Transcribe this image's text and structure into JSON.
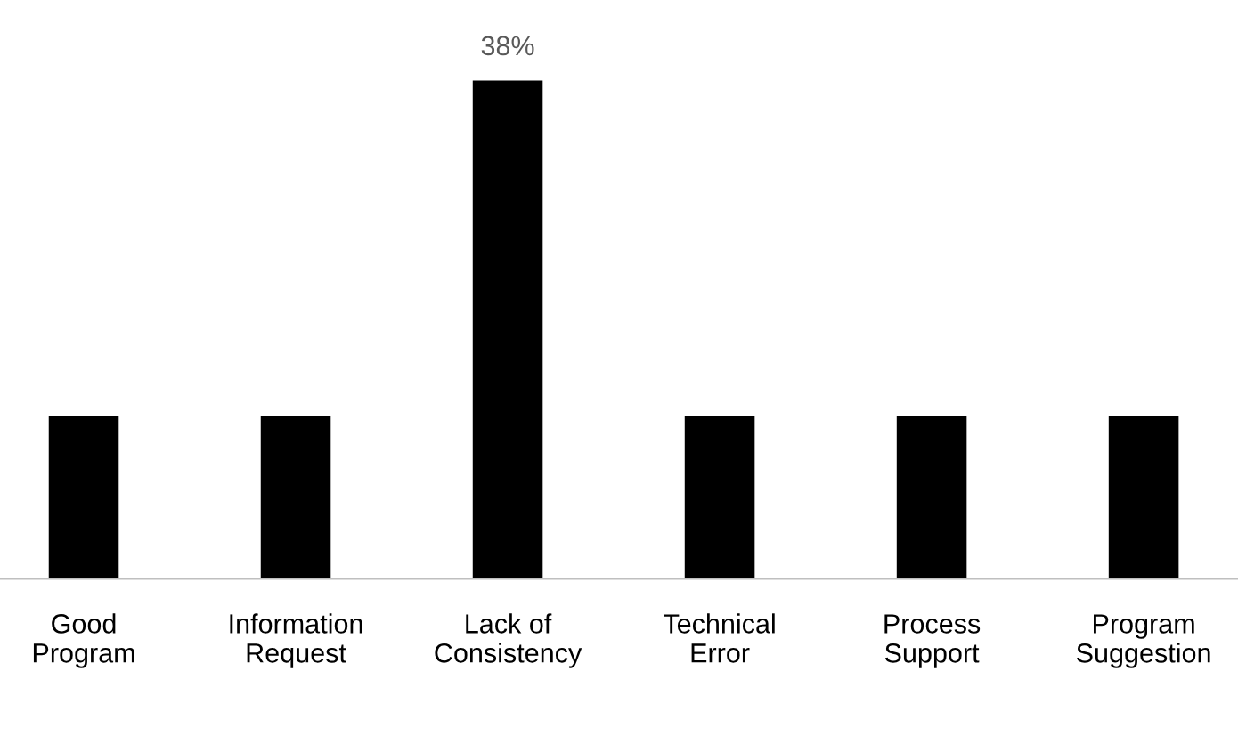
{
  "chart_data": {
    "type": "bar",
    "categories": [
      "Good\nProgram",
      "Information\nRequest",
      "Lack of\nConsistency",
      "Technical\nError",
      "Process\nSupport",
      "Program\nSuggestion"
    ],
    "values": [
      12.4,
      12.4,
      38,
      12.4,
      12.4,
      12.4
    ],
    "value_labels": [
      null,
      null,
      "38%",
      null,
      null,
      null
    ],
    "color": "#000000",
    "grid": false,
    "legend": false
  }
}
